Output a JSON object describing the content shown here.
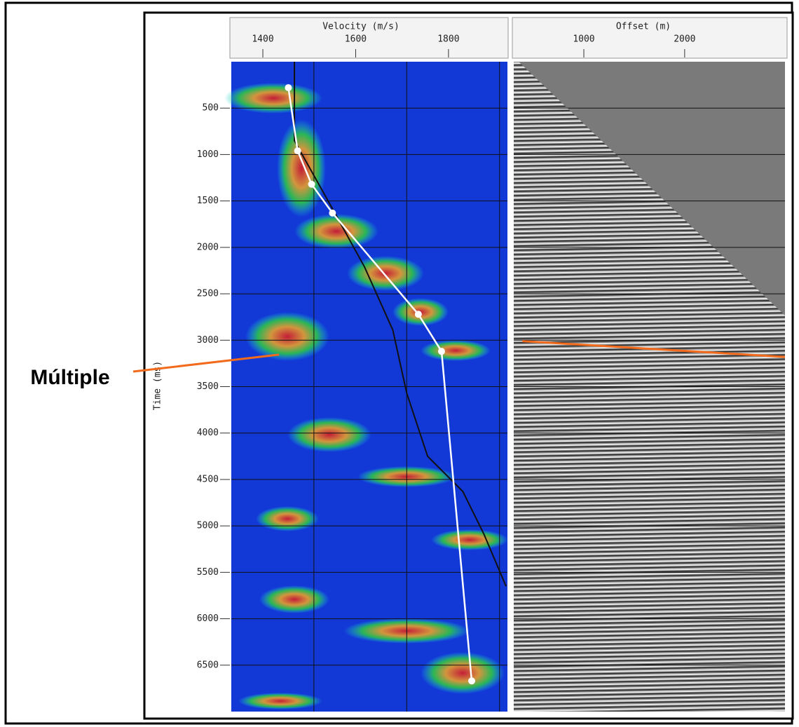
{
  "annotation": {
    "text": "Múltiple",
    "x": 1435,
    "y": 3155,
    "color": "#f26b1d"
  },
  "chart_data": [
    {
      "type": "semblance",
      "xlabel": "Velocity (m/s)",
      "ylabel": "Time (ms)",
      "xlim": [
        1332,
        1927
      ],
      "xticks": [
        1400,
        1600,
        1800
      ],
      "grid_x": [
        1510,
        1710,
        1910
      ],
      "ylim": [
        0,
        7000
      ],
      "y_inverted": true,
      "yticks": [
        500,
        1000,
        1500,
        2000,
        2500,
        3000,
        3500,
        4000,
        4500,
        5000,
        5500,
        6000,
        6500
      ],
      "picks": {
        "color": "#ffffff",
        "x": [
          1455,
          1475,
          1505,
          1550,
          1735,
          1785,
          1850
        ],
        "y": [
          280,
          960,
          1320,
          1630,
          2720,
          3120,
          6670
        ]
      },
      "reference": {
        "color": "#111111",
        "x": [
          1468,
          1468,
          1544,
          1619,
          1680,
          1710,
          1755,
          1831,
          1876,
          1924
        ],
        "y": [
          0,
          850,
          1530,
          2210,
          2890,
          3570,
          4250,
          4630,
          5085,
          5650
        ]
      }
    },
    {
      "type": "gather",
      "xlabel": "Offset (m)",
      "xlim": [
        305,
        2995
      ],
      "xticks": [
        1000,
        2000
      ],
      "ylim": [
        0,
        7000
      ],
      "y_inverted": true,
      "event": {
        "color": "#f26b1d",
        "x": [
          390,
          2995
        ],
        "y": [
          3010,
          3180
        ]
      }
    }
  ]
}
